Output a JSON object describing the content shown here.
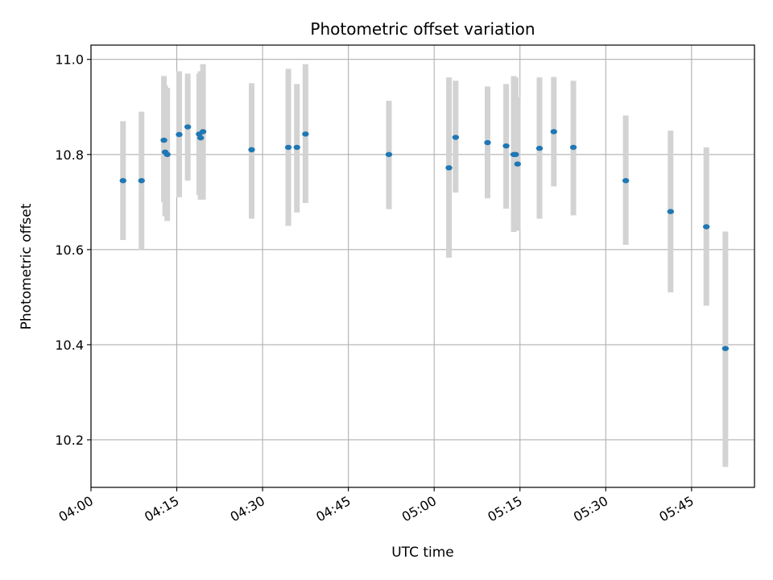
{
  "chart_data": {
    "type": "scatter",
    "title": "Photometric offset variation",
    "xlabel": "UTC time",
    "ylabel": "Photometric offset",
    "x_unit": "UTC time (HH:MM:SS)",
    "xlim": [
      "04:00:00",
      "05:56:00"
    ],
    "ylim": [
      10.1,
      11.03
    ],
    "xticks": [
      "04:00",
      "04:15",
      "04:30",
      "04:45",
      "05:00",
      "05:15",
      "05:30",
      "05:45"
    ],
    "yticks": [
      10.2,
      10.4,
      10.6,
      10.8,
      11.0
    ],
    "grid": true,
    "colors": {
      "point": "#1f77b4",
      "errorbar": "#d3d3d3",
      "grid": "#b0b0b0"
    },
    "points": [
      {
        "x": "04:05:36",
        "y": 10.745,
        "ymin": 10.62,
        "ymax": 10.87
      },
      {
        "x": "04:08:50",
        "y": 10.745,
        "ymin": 10.6,
        "ymax": 10.89
      },
      {
        "x": "04:12:45",
        "y": 10.83,
        "ymin": 10.7,
        "ymax": 10.965
      },
      {
        "x": "04:12:58",
        "y": 10.805,
        "ymin": 10.67,
        "ymax": 10.945
      },
      {
        "x": "04:13:20",
        "y": 10.8,
        "ymin": 10.66,
        "ymax": 10.94
      },
      {
        "x": "04:15:25",
        "y": 10.842,
        "ymin": 10.71,
        "ymax": 10.975
      },
      {
        "x": "04:16:55",
        "y": 10.858,
        "ymin": 10.745,
        "ymax": 10.97
      },
      {
        "x": "04:18:55",
        "y": 10.843,
        "ymin": 10.715,
        "ymax": 10.97
      },
      {
        "x": "04:19:10",
        "y": 10.835,
        "ymin": 10.705,
        "ymax": 10.975
      },
      {
        "x": "04:19:35",
        "y": 10.848,
        "ymin": 10.705,
        "ymax": 10.99
      },
      {
        "x": "04:28:05",
        "y": 10.81,
        "ymin": 10.665,
        "ymax": 10.95
      },
      {
        "x": "04:34:30",
        "y": 10.815,
        "ymin": 10.65,
        "ymax": 10.98
      },
      {
        "x": "04:36:00",
        "y": 10.815,
        "ymin": 10.678,
        "ymax": 10.948
      },
      {
        "x": "04:37:30",
        "y": 10.843,
        "ymin": 10.698,
        "ymax": 10.99
      },
      {
        "x": "04:52:05",
        "y": 10.8,
        "ymin": 10.685,
        "ymax": 10.913
      },
      {
        "x": "05:02:35",
        "y": 10.772,
        "ymin": 10.583,
        "ymax": 10.962
      },
      {
        "x": "05:03:45",
        "y": 10.836,
        "ymin": 10.72,
        "ymax": 10.955
      },
      {
        "x": "05:09:20",
        "y": 10.825,
        "ymin": 10.708,
        "ymax": 10.943
      },
      {
        "x": "05:12:35",
        "y": 10.818,
        "ymin": 10.686,
        "ymax": 10.948
      },
      {
        "x": "05:13:55",
        "y": 10.8,
        "ymin": 10.637,
        "ymax": 10.965
      },
      {
        "x": "05:14:15",
        "y": 10.8,
        "ymin": 10.64,
        "ymax": 10.962
      },
      {
        "x": "05:14:35",
        "y": 10.78,
        "ymin": 10.64,
        "ymax": 10.92
      },
      {
        "x": "05:18:25",
        "y": 10.813,
        "ymin": 10.665,
        "ymax": 10.962
      },
      {
        "x": "05:20:55",
        "y": 10.848,
        "ymin": 10.733,
        "ymax": 10.963
      },
      {
        "x": "05:24:20",
        "y": 10.815,
        "ymin": 10.672,
        "ymax": 10.955
      },
      {
        "x": "05:33:30",
        "y": 10.745,
        "ymin": 10.61,
        "ymax": 10.882
      },
      {
        "x": "05:41:20",
        "y": 10.68,
        "ymin": 10.51,
        "ymax": 10.85
      },
      {
        "x": "05:47:35",
        "y": 10.648,
        "ymin": 10.482,
        "ymax": 10.815
      },
      {
        "x": "05:50:55",
        "y": 10.392,
        "ymin": 10.143,
        "ymax": 10.638
      }
    ]
  }
}
